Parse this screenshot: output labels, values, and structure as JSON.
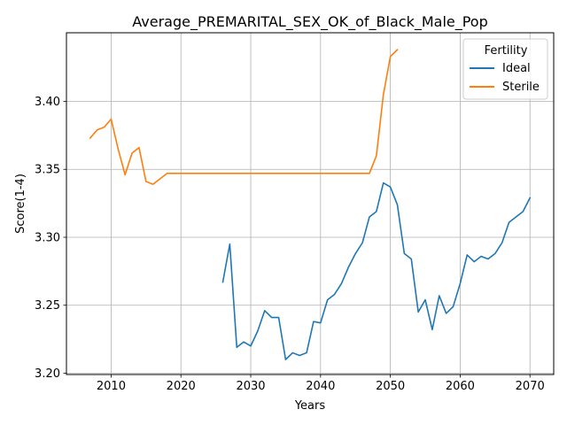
{
  "chart_data": {
    "type": "line",
    "title": "Average_PREMARITAL_SEX_OK_of_Black_Male_Pop",
    "xlabel": "Years",
    "ylabel": "Score(1-4)",
    "xlim": [
      2003.6,
      2073.4
    ],
    "ylim": [
      3.199,
      3.4505
    ],
    "xticks": [
      2010,
      2020,
      2030,
      2040,
      2050,
      2060,
      2070
    ],
    "xtick_labels": [
      "2010",
      "2020",
      "2030",
      "2040",
      "2050",
      "2060",
      "2070"
    ],
    "yticks": [
      3.2,
      3.25,
      3.3,
      3.35,
      3.4
    ],
    "ytick_labels": [
      "3.20",
      "3.25",
      "3.30",
      "3.35",
      "3.40"
    ],
    "grid": true,
    "legend": {
      "title": "Fertility",
      "placement": "top-right"
    },
    "series": [
      {
        "name": "Ideal",
        "color": "#1f77b4",
        "x": [
          2026,
          2027,
          2028,
          2029,
          2030,
          2031,
          2032,
          2033,
          2034,
          2035,
          2036,
          2037,
          2038,
          2039,
          2040,
          2041,
          2042,
          2043,
          2044,
          2045,
          2046,
          2047,
          2048,
          2049,
          2050,
          2051,
          2052,
          2053,
          2054,
          2055,
          2056,
          2057,
          2058,
          2059,
          2060,
          2061,
          2062,
          2063,
          2064,
          2065,
          2066,
          2067,
          2068,
          2069,
          2070
        ],
        "y": [
          3.267,
          3.295,
          3.219,
          3.223,
          3.22,
          3.231,
          3.246,
          3.241,
          3.241,
          3.21,
          3.215,
          3.213,
          3.215,
          3.238,
          3.237,
          3.254,
          3.258,
          3.266,
          3.278,
          3.288,
          3.296,
          3.315,
          3.319,
          3.34,
          3.337,
          3.324,
          3.288,
          3.284,
          3.245,
          3.254,
          3.232,
          3.257,
          3.244,
          3.249,
          3.266,
          3.287,
          3.282,
          3.286,
          3.284,
          3.288,
          3.296,
          3.311,
          3.315,
          3.319,
          3.329
        ]
      },
      {
        "name": "Sterile",
        "color": "#ff7f0e",
        "x": [
          2007,
          2008,
          2009,
          2010,
          2011,
          2012,
          2013,
          2014,
          2015,
          2016,
          2017,
          2018,
          2019,
          2020,
          2021,
          2022,
          2023,
          2024,
          2025,
          2026,
          2027,
          2028,
          2029,
          2030,
          2031,
          2032,
          2033,
          2034,
          2035,
          2036,
          2037,
          2038,
          2039,
          2040,
          2041,
          2042,
          2043,
          2044,
          2045,
          2046,
          2047,
          2048,
          2049,
          2050,
          2051
        ],
        "y": [
          3.373,
          3.379,
          3.381,
          3.387,
          3.365,
          3.346,
          3.362,
          3.366,
          3.341,
          3.339,
          3.343,
          3.347,
          3.347,
          3.347,
          3.347,
          3.347,
          3.347,
          3.347,
          3.347,
          3.347,
          3.347,
          3.347,
          3.347,
          3.347,
          3.347,
          3.347,
          3.347,
          3.347,
          3.347,
          3.347,
          3.347,
          3.347,
          3.347,
          3.347,
          3.347,
          3.347,
          3.347,
          3.347,
          3.347,
          3.347,
          3.347,
          3.36,
          3.405,
          3.433,
          3.438
        ]
      }
    ]
  }
}
